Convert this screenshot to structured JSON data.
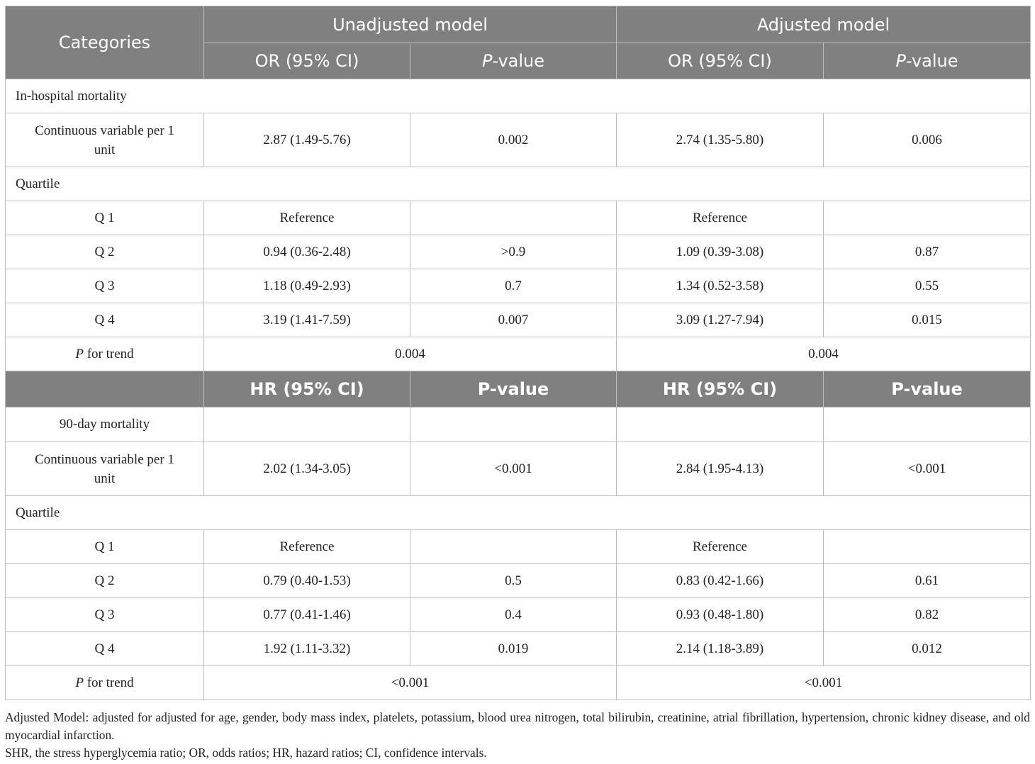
{
  "header": {
    "categories": "Categories",
    "unadjusted": "Unadjusted model",
    "adjusted": "Adjusted model",
    "or_ci": "OR (95% CI)",
    "p_italic": "P",
    "p_rest": "-value"
  },
  "section1": {
    "title": "In-hospital mortality",
    "continuous": {
      "label": "Continuous variable per 1 unit",
      "u_or": "2.87 (1.49-5.76)",
      "u_p": "0.002",
      "a_or": "2.74 (1.35-5.80)",
      "a_p": "0.006"
    },
    "quartile_label": "Quartile",
    "rows": [
      {
        "label": "Q 1",
        "u_or": "Reference",
        "u_p": "",
        "a_or": "Reference",
        "a_p": ""
      },
      {
        "label": "Q 2",
        "u_or": "0.94 (0.36-2.48)",
        "u_p": ">0.9",
        "a_or": "1.09 (0.39-3.08)",
        "a_p": "0.87"
      },
      {
        "label": "Q 3",
        "u_or": "1.18 (0.49-2.93)",
        "u_p": "0.7",
        "a_or": "1.34 (0.52-3.58)",
        "a_p": "0.55"
      },
      {
        "label": "Q 4",
        "u_or": "3.19 (1.41-7.59)",
        "u_p": "0.007",
        "a_or": "3.09 (1.27-7.94)",
        "a_p": "0.015"
      }
    ],
    "trend": {
      "p": "P",
      "label": " for trend",
      "u": "0.004",
      "a": "0.004"
    }
  },
  "header2": {
    "hr_ci": "HR (95% CI)",
    "pvalue": "P-value"
  },
  "section2": {
    "title": "90-day mortality",
    "continuous": {
      "label": "Continuous variable per 1 unit",
      "u_or": "2.02 (1.34-3.05)",
      "u_p": "<0.001",
      "a_or": "2.84 (1.95-4.13)",
      "a_p": "<0.001"
    },
    "quartile_label": "Quartile",
    "rows": [
      {
        "label": "Q 1",
        "u_or": "Reference",
        "u_p": "",
        "a_or": "Reference",
        "a_p": ""
      },
      {
        "label": "Q 2",
        "u_or": "0.79 (0.40-1.53)",
        "u_p": "0.5",
        "a_or": "0.83 (0.42-1.66)",
        "a_p": "0.61"
      },
      {
        "label": "Q 3",
        "u_or": "0.77 (0.41-1.46)",
        "u_p": "0.4",
        "a_or": "0.93 (0.48-1.80)",
        "a_p": "0.82"
      },
      {
        "label": "Q 4",
        "u_or": "1.92 (1.11-3.32)",
        "u_p": "0.019",
        "a_or": "2.14 (1.18-3.89)",
        "a_p": "0.012"
      }
    ],
    "trend": {
      "p": "P",
      "label": " for trend",
      "u": "<0.001",
      "a": "<0.001"
    }
  },
  "footnotes": {
    "adjusted": "Adjusted Model: adjusted for adjusted for age, gender, body mass index, platelets, potassium, blood urea nitrogen, total bilirubin, creatinine, atrial fibrillation, hypertension, chronic kidney disease, and old myocardial infarction.",
    "abbrev": "SHR, the stress hyperglycemia ratio; OR, odds ratios; HR, hazard ratios; CI, confidence intervals."
  }
}
